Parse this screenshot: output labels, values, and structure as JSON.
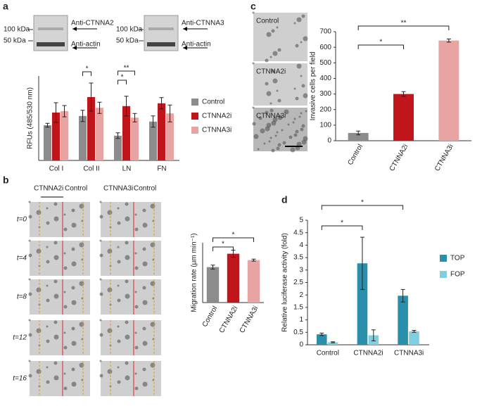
{
  "chart_data": [
    {
      "panel": "a",
      "type": "bar",
      "blots": [
        [
          "100 kDa",
          "50 kDa",
          "Anti-CTNNA2",
          "Anti-actin"
        ],
        [
          "100 kDa",
          "50 kDa",
          "Anti-CTNNA3",
          "Anti-actin"
        ]
      ],
      "ylabel": "RFUs (485/530 nm)",
      "categories": [
        "Col I",
        "Col II",
        "LN",
        "FN"
      ],
      "series": [
        {
          "name": "Control",
          "color": "#8c8c8c",
          "values": [
            1.25,
            1.58,
            0.88,
            1.38
          ],
          "errors": [
            0.07,
            0.2,
            0.1,
            0.2
          ]
        },
        {
          "name": "CTNNA2i",
          "color": "#c0151b",
          "values": [
            1.7,
            2.25,
            1.93,
            2.03
          ],
          "errors": [
            0.35,
            0.5,
            0.35,
            0.2
          ]
        },
        {
          "name": "CTNNA3i",
          "color": "#e8a3a3",
          "values": [
            1.75,
            1.87,
            1.52,
            1.67
          ],
          "errors": [
            0.2,
            0.2,
            0.15,
            0.3
          ]
        }
      ],
      "ylim": [
        0,
        3
      ],
      "annotations": [
        "*",
        "*",
        "**"
      ]
    },
    {
      "panel": "b",
      "type": "bar",
      "image_labels": {
        "columns": [
          "CTNNA2i",
          "Control",
          "CTNNA3i",
          "Control"
        ],
        "rows": [
          "t=0",
          "t=4",
          "t=8",
          "t=12",
          "t=16"
        ]
      },
      "ylabel": "Migration rate (μm min⁻¹)",
      "categories": [
        "Control",
        "CTNNA2i",
        "CTNNA3i"
      ],
      "values": [
        0.178,
        0.245,
        0.213
      ],
      "errors": [
        0.01,
        0.018,
        0.005
      ],
      "colors": [
        "#8c8c8c",
        "#c0151b",
        "#e8a3a3"
      ],
      "ylim": [
        0,
        0.3
      ],
      "annotations": [
        "*",
        "*"
      ]
    },
    {
      "panel": "c",
      "type": "bar",
      "image_labels": [
        "Control",
        "CTNNA2i",
        "CTNNA3i"
      ],
      "ylabel": "Invasive cells per field",
      "categories": [
        "Control",
        "CTNNA2i",
        "CTNNA3i"
      ],
      "values": [
        50,
        300,
        643
      ],
      "errors": [
        12,
        15,
        10
      ],
      "colors": [
        "#8c8c8c",
        "#c0151b",
        "#e8a3a3"
      ],
      "ylim": [
        0,
        700
      ],
      "yticks": [
        0,
        100,
        200,
        300,
        400,
        500,
        600,
        700
      ],
      "annotations": [
        "*",
        "**"
      ]
    },
    {
      "panel": "d",
      "type": "bar",
      "ylabel": "Relative luciferase activity (fold)",
      "categories": [
        "Control",
        "CTNNA2i",
        "CTNNA3i"
      ],
      "series": [
        {
          "name": "TOP",
          "color": "#2a8fab",
          "values": [
            0.42,
            3.27,
            1.97
          ],
          "errors": [
            0.05,
            1.05,
            0.25
          ]
        },
        {
          "name": "FOP",
          "color": "#7fcfe0",
          "values": [
            0.1,
            0.38,
            0.54
          ],
          "errors": [
            0.02,
            0.22,
            0.04
          ]
        }
      ],
      "ylim": [
        0,
        5
      ],
      "yticks": [
        0,
        0.5,
        1,
        1.5,
        2,
        2.5,
        3,
        3.5,
        4,
        4.5,
        5
      ],
      "annotations": [
        "*",
        "*"
      ]
    }
  ]
}
